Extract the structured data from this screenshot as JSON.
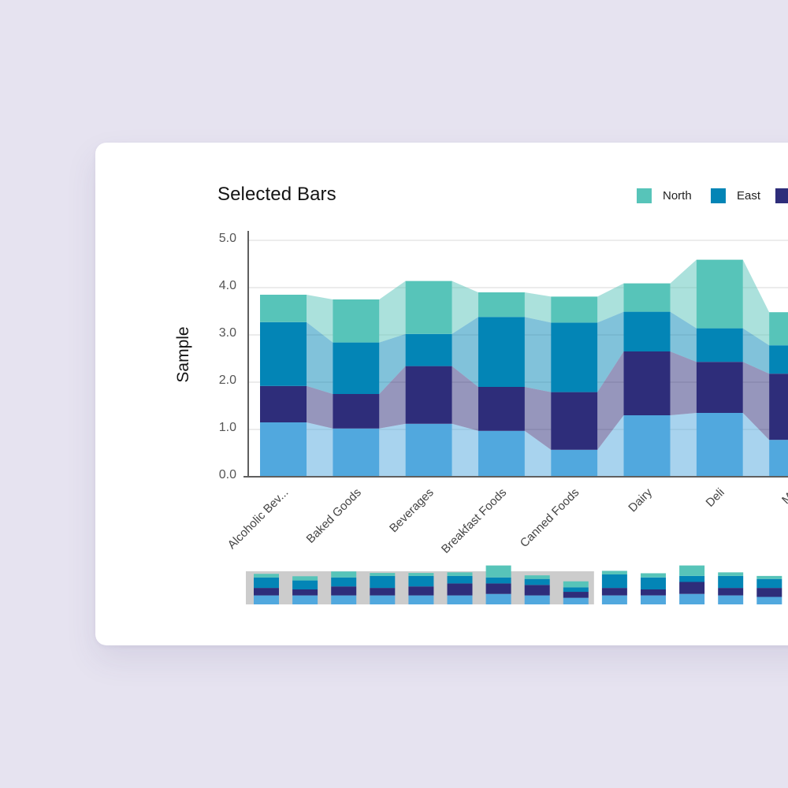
{
  "chart_data": {
    "type": "bar",
    "stacked": true,
    "title": "Selected Bars",
    "xlabel": "",
    "ylabel": "Sample",
    "ylim": [
      0,
      5
    ],
    "yticks": [
      "0.0",
      "1.0",
      "2.0",
      "3.0",
      "4.0",
      "5.0"
    ],
    "grid": true,
    "legend_position": "top-right",
    "categories": [
      "Alcoholic Bev...",
      "Baked Goods",
      "Beverages",
      "Breakfast Foods",
      "Canned Foods",
      "Dairy",
      "Deli",
      "Me"
    ],
    "series": [
      {
        "name": "",
        "color": "#51a8de",
        "values": [
          1.15,
          1.02,
          1.12,
          0.97,
          0.57,
          1.3,
          1.35,
          0.78
        ]
      },
      {
        "name": "",
        "color": "#2e2d7a",
        "values": [
          0.77,
          0.73,
          1.22,
          0.93,
          1.22,
          1.35,
          1.08,
          1.4
        ]
      },
      {
        "name": "East",
        "color": "#0385b6",
        "values": [
          1.35,
          1.09,
          0.68,
          1.48,
          1.47,
          0.84,
          0.71,
          0.6
        ]
      },
      {
        "name": "North",
        "color": "#57c4b9",
        "values": [
          0.58,
          0.91,
          1.12,
          0.52,
          0.55,
          0.6,
          1.45,
          0.7
        ]
      }
    ],
    "overview": {
      "selected_range": [
        0,
        8
      ],
      "bars": [
        [
          0.3,
          0.25,
          0.35,
          0.12
        ],
        [
          0.3,
          0.2,
          0.3,
          0.14
        ],
        [
          0.3,
          0.3,
          0.3,
          0.2
        ],
        [
          0.3,
          0.25,
          0.4,
          0.1
        ],
        [
          0.3,
          0.3,
          0.35,
          0.1
        ],
        [
          0.3,
          0.4,
          0.25,
          0.12
        ],
        [
          0.35,
          0.35,
          0.2,
          0.4
        ],
        [
          0.3,
          0.35,
          0.2,
          0.12
        ],
        [
          0.22,
          0.2,
          0.15,
          0.2
        ],
        [
          0.3,
          0.25,
          0.45,
          0.12
        ],
        [
          0.3,
          0.2,
          0.4,
          0.14
        ],
        [
          0.35,
          0.4,
          0.2,
          0.35
        ],
        [
          0.3,
          0.25,
          0.4,
          0.12
        ],
        [
          0.25,
          0.3,
          0.3,
          0.1
        ]
      ]
    }
  }
}
